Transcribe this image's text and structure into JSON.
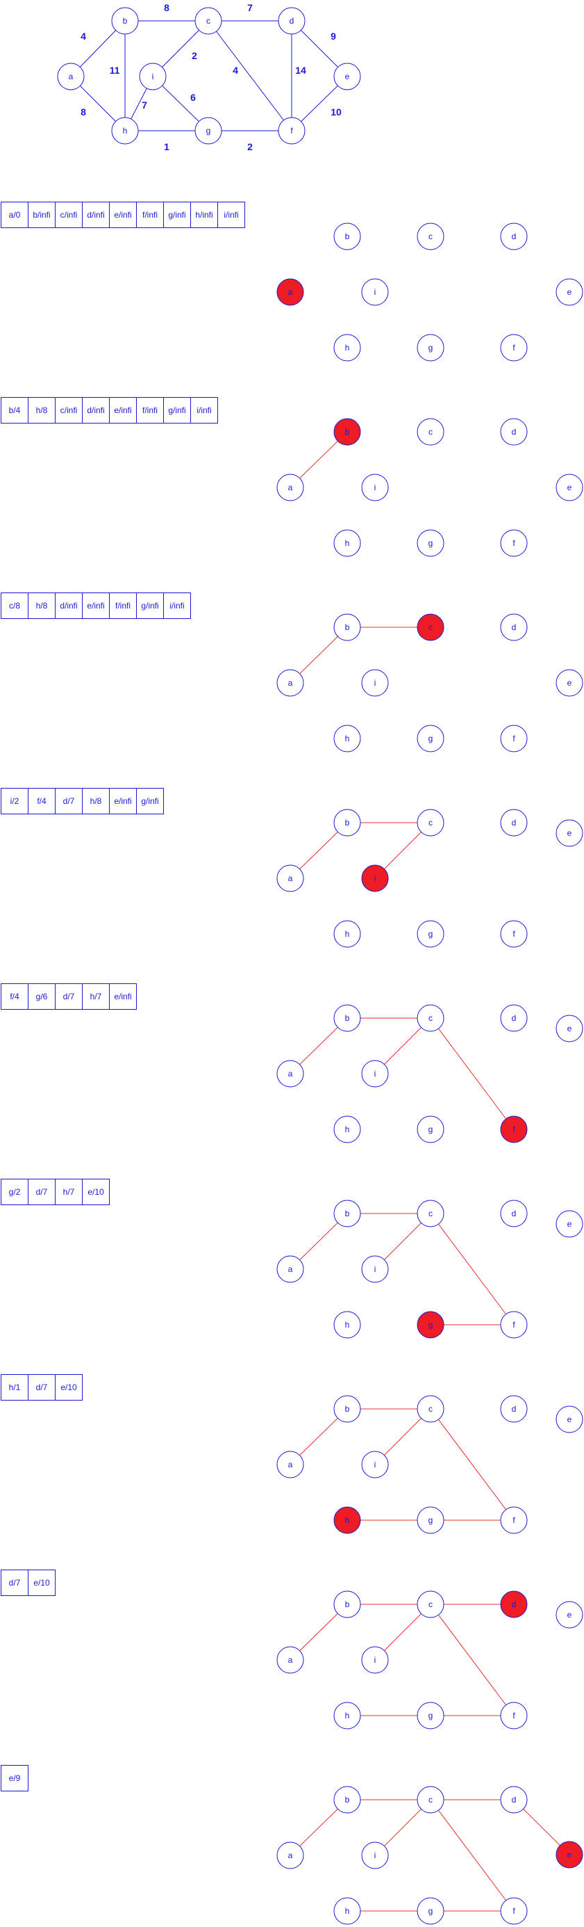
{
  "colors": {
    "stroke": "#1a1ad6",
    "tree": "#ea2d2d",
    "current_fill": "#ee1c25"
  },
  "graph": {
    "nodes": [
      "a",
      "b",
      "c",
      "d",
      "e",
      "f",
      "g",
      "h",
      "i"
    ],
    "edges": [
      {
        "u": "a",
        "v": "b",
        "w": "4"
      },
      {
        "u": "a",
        "v": "h",
        "w": "8"
      },
      {
        "u": "b",
        "v": "c",
        "w": "8"
      },
      {
        "u": "b",
        "v": "h",
        "w": "11"
      },
      {
        "u": "c",
        "v": "d",
        "w": "7"
      },
      {
        "u": "c",
        "v": "i",
        "w": "2"
      },
      {
        "u": "c",
        "v": "f",
        "w": "4"
      },
      {
        "u": "d",
        "v": "e",
        "w": "9"
      },
      {
        "u": "d",
        "v": "f",
        "w": "14"
      },
      {
        "u": "e",
        "v": "f",
        "w": "10"
      },
      {
        "u": "f",
        "v": "g",
        "w": "2"
      },
      {
        "u": "g",
        "v": "h",
        "w": "1"
      },
      {
        "u": "g",
        "v": "i",
        "w": "6"
      },
      {
        "u": "h",
        "v": "i",
        "w": "7"
      }
    ]
  },
  "steps": [
    {
      "queue": [
        "a/0",
        "b/infi",
        "c/infi",
        "d/infi",
        "e/infi",
        "f/infi",
        "g/infi",
        "h/infi",
        "i/infi"
      ],
      "current": "a",
      "tree_edges": []
    },
    {
      "queue": [
        "b/4",
        "h/8",
        "c/infi",
        "d/infi",
        "e/infi",
        "f/infi",
        "g/infi",
        "i/infi"
      ],
      "current": "b",
      "tree_edges": [
        [
          "a",
          "b"
        ]
      ]
    },
    {
      "queue": [
        "c/8",
        "h/8",
        "d/infi",
        "e/infi",
        "f/infi",
        "g/infi",
        "i/infi"
      ],
      "current": "c",
      "tree_edges": [
        [
          "a",
          "b"
        ],
        [
          "b",
          "c"
        ]
      ]
    },
    {
      "queue": [
        "i/2",
        "f/4",
        "d/7",
        "h/8",
        "e/infi",
        "g/infi"
      ],
      "current": "i",
      "tree_edges": [
        [
          "a",
          "b"
        ],
        [
          "b",
          "c"
        ],
        [
          "c",
          "i"
        ]
      ]
    },
    {
      "queue": [
        "f/4",
        "g/6",
        "d/7",
        "h/7",
        "e/infi"
      ],
      "current": "f",
      "tree_edges": [
        [
          "a",
          "b"
        ],
        [
          "b",
          "c"
        ],
        [
          "c",
          "i"
        ],
        [
          "c",
          "f"
        ]
      ]
    },
    {
      "queue": [
        "g/2",
        "d/7",
        "h/7",
        "e/10"
      ],
      "current": "g",
      "tree_edges": [
        [
          "a",
          "b"
        ],
        [
          "b",
          "c"
        ],
        [
          "c",
          "i"
        ],
        [
          "c",
          "f"
        ],
        [
          "f",
          "g"
        ]
      ]
    },
    {
      "queue": [
        "h/1",
        "d/7",
        "e/10"
      ],
      "current": "h",
      "tree_edges": [
        [
          "a",
          "b"
        ],
        [
          "b",
          "c"
        ],
        [
          "c",
          "i"
        ],
        [
          "c",
          "f"
        ],
        [
          "f",
          "g"
        ],
        [
          "g",
          "h"
        ]
      ]
    },
    {
      "queue": [
        "d/7",
        "e/10"
      ],
      "current": "d",
      "tree_edges": [
        [
          "a",
          "b"
        ],
        [
          "b",
          "c"
        ],
        [
          "c",
          "i"
        ],
        [
          "c",
          "f"
        ],
        [
          "f",
          "g"
        ],
        [
          "g",
          "h"
        ],
        [
          "c",
          "d"
        ]
      ]
    },
    {
      "queue": [
        "e/9"
      ],
      "current": "e",
      "tree_edges": [
        [
          "a",
          "b"
        ],
        [
          "b",
          "c"
        ],
        [
          "c",
          "i"
        ],
        [
          "c",
          "f"
        ],
        [
          "f",
          "g"
        ],
        [
          "g",
          "h"
        ],
        [
          "c",
          "d"
        ],
        [
          "d",
          "e"
        ]
      ]
    }
  ]
}
